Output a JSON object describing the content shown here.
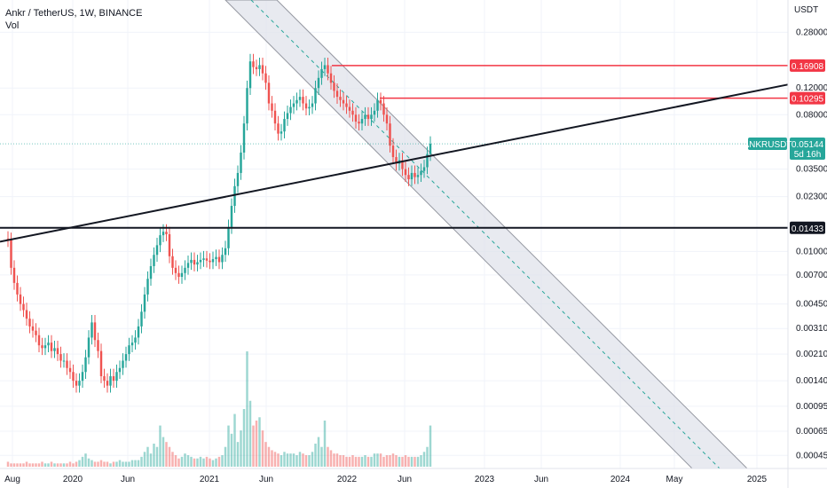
{
  "chart_data": {
    "type": "candlestick",
    "title": "Ankr / TetherUS, 1W, BINANCE",
    "indicator_label": "Vol",
    "currency": "USDT",
    "scale": "log",
    "ylim": [
      0.0004,
      0.4
    ],
    "y_ticks": [
      "0.28000",
      "0.12000",
      "0.08000",
      "0.03500",
      "0.02300",
      "0.01000",
      "0.00700",
      "0.00450",
      "0.00310",
      "0.00210",
      "0.00140",
      "0.00095",
      "0.00065",
      "0.00045"
    ],
    "x_ticks": [
      "Aug",
      "2020",
      "Jun",
      "2021",
      "Jun",
      "2022",
      "Jun",
      "2023",
      "Jun",
      "2024",
      "May",
      "2025"
    ],
    "price_tags": [
      {
        "value": "0.16908",
        "color": "#f23645"
      },
      {
        "value": "0.10295",
        "color": "#f23645"
      },
      {
        "value": "0.01433",
        "color": "#131722"
      }
    ],
    "current": {
      "symbol": "ANKRUSDT",
      "price": "0.05144",
      "countdown": "5d 16h",
      "color": "#26a69a"
    },
    "horizontal_levels": [
      {
        "price": 0.16908,
        "color": "#f23645"
      },
      {
        "price": 0.10295,
        "color": "#f23645"
      },
      {
        "price": 0.01433,
        "color": "#131722"
      }
    ],
    "trendline": {
      "color": "#131722",
      "price_start": 0.0116,
      "price_end": 0.1265
    },
    "channel": {
      "fill": "#e0e3eb",
      "mid_color": "#26a69a"
    },
    "closes": [
      0.0119,
      0.0078,
      0.0062,
      0.0052,
      0.0045,
      0.0041,
      0.0036,
      0.0032,
      0.003,
      0.0028,
      0.0024,
      0.0023,
      0.0024,
      0.0025,
      0.0022,
      0.0023,
      0.0021,
      0.0019,
      0.0019,
      0.0017,
      0.0016,
      0.0014,
      0.0013,
      0.0014,
      0.0016,
      0.002,
      0.0027,
      0.0034,
      0.0026,
      0.0022,
      0.0015,
      0.0014,
      0.0013,
      0.0015,
      0.0014,
      0.0016,
      0.0017,
      0.0019,
      0.0021,
      0.0024,
      0.0025,
      0.0027,
      0.0032,
      0.004,
      0.0052,
      0.0066,
      0.008,
      0.0095,
      0.011,
      0.0128,
      0.0135,
      0.013,
      0.0093,
      0.0078,
      0.0072,
      0.0068,
      0.0072,
      0.0078,
      0.0084,
      0.0088,
      0.0082,
      0.0085,
      0.0088,
      0.009,
      0.0087,
      0.0085,
      0.0089,
      0.0092,
      0.0085,
      0.0095,
      0.0105,
      0.0145,
      0.02,
      0.027,
      0.033,
      0.045,
      0.07,
      0.12,
      0.18,
      0.165,
      0.16,
      0.17,
      0.15,
      0.13,
      0.095,
      0.085,
      0.07,
      0.06,
      0.062,
      0.075,
      0.082,
      0.09,
      0.095,
      0.1,
      0.105,
      0.095,
      0.088,
      0.09,
      0.095,
      0.12,
      0.14,
      0.16,
      0.17,
      0.15,
      0.13,
      0.115,
      0.105,
      0.1,
      0.095,
      0.09,
      0.085,
      0.08,
      0.072,
      0.07,
      0.075,
      0.08,
      0.075,
      0.08,
      0.085,
      0.1,
      0.095,
      0.08,
      0.07,
      0.05,
      0.042,
      0.038,
      0.04,
      0.035,
      0.032,
      0.03,
      0.033,
      0.031,
      0.032,
      0.034,
      0.036,
      0.044,
      0.0514
    ],
    "volumes": [
      3,
      2,
      2,
      2,
      2,
      2,
      3,
      2,
      2,
      2,
      2,
      3,
      2,
      2,
      3,
      2,
      2,
      2,
      2,
      2,
      3,
      2,
      3,
      4,
      6,
      8,
      5,
      4,
      3,
      3,
      4,
      3,
      3,
      2,
      3,
      3,
      4,
      3,
      3,
      3,
      4,
      4,
      4,
      6,
      9,
      12,
      8,
      14,
      12,
      25,
      18,
      15,
      12,
      9,
      7,
      5,
      6,
      8,
      7,
      6,
      5,
      5,
      6,
      5,
      6,
      5,
      4,
      5,
      6,
      7,
      12,
      25,
      20,
      32,
      15,
      22,
      35,
      70,
      40,
      25,
      28,
      30,
      22,
      15,
      12,
      10,
      9,
      8,
      7,
      9,
      8,
      8,
      8,
      7,
      9,
      8,
      7,
      7,
      9,
      14,
      18,
      12,
      28,
      12,
      10,
      8,
      8,
      7,
      7,
      6,
      6,
      7,
      6,
      6,
      6,
      7,
      6,
      6,
      8,
      8,
      8,
      6,
      7,
      7,
      8,
      7,
      6,
      6,
      7,
      6,
      6,
      6,
      6,
      7,
      9,
      12,
      25
    ]
  }
}
